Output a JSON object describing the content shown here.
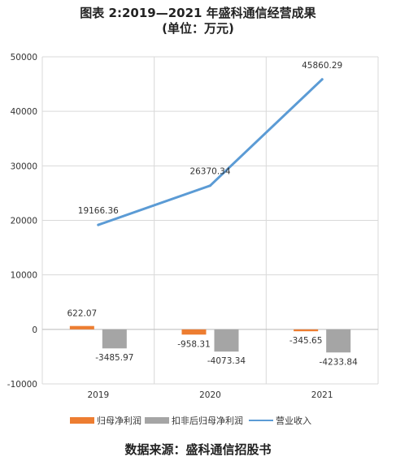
{
  "title": "图表 2:2019—2021 年盛科通信经营成果",
  "subtitle": "(单位：万元)",
  "source": "数据来源：盛科通信招股书",
  "colors": {
    "net_profit": "#ed7d31",
    "net_profit_excl": "#a5a5a5",
    "revenue": "#5b9bd5",
    "grid": "#d9d9d9"
  },
  "chart_data": {
    "type": "bar",
    "categories": [
      "2019",
      "2020",
      "2021"
    ],
    "ylim": [
      -10000,
      50000
    ],
    "yticks": [
      "-10000",
      "0",
      "10000",
      "20000",
      "30000",
      "40000",
      "50000"
    ],
    "grid": true,
    "legend_position": "bottom",
    "series": [
      {
        "name": "归母净利润",
        "kind": "bar",
        "values": [
          622.07,
          -958.31,
          -345.65
        ],
        "labels": [
          "622.07",
          "-958.31",
          "-345.65"
        ]
      },
      {
        "name": "扣非后归母净利润",
        "kind": "bar",
        "values": [
          -3485.97,
          -4073.34,
          -4233.84
        ],
        "labels": [
          "-3485.97",
          "-4073.34",
          "-4233.84"
        ]
      },
      {
        "name": "营业收入",
        "kind": "line",
        "values": [
          19166.36,
          26370.34,
          45860.29
        ],
        "labels": [
          "19166.36",
          "26370.34",
          "45860.29"
        ]
      }
    ]
  }
}
